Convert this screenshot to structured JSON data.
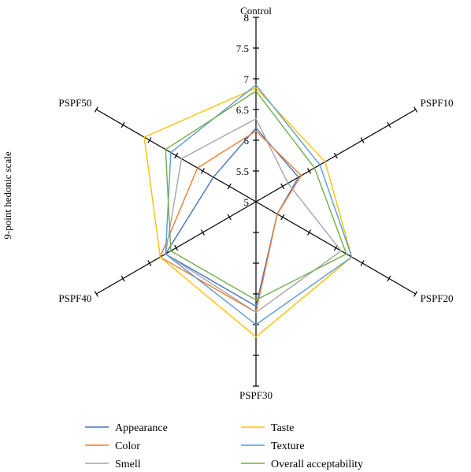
{
  "chart_data": {
    "type": "radar",
    "ylabel": "9-point hedonic scale",
    "axes": [
      "Control",
      "PSPF10",
      "PSPF20",
      "PSPF30",
      "PSPF40",
      "PSPF50"
    ],
    "scale": {
      "min": 5,
      "max": 8,
      "step": 0.5
    },
    "tick_labels": [
      "5",
      "5.5",
      "6",
      "6.5",
      "7",
      "7.5",
      "8"
    ],
    "series": [
      {
        "name": "Appearance",
        "color": "#4472C4",
        "values": [
          6.2,
          5.8,
          5.4,
          6.7,
          6.7,
          5.8
        ]
      },
      {
        "name": "Color",
        "color": "#ED7D31",
        "values": [
          6.15,
          5.85,
          5.4,
          6.8,
          6.8,
          6.1
        ]
      },
      {
        "name": "Smell",
        "color": "#A5A5A5",
        "values": [
          6.35,
          5.6,
          6.6,
          6.8,
          6.7,
          6.4
        ]
      },
      {
        "name": "Taste",
        "color": "#FFC000",
        "values": [
          6.85,
          6.3,
          6.8,
          7.2,
          6.8,
          7.1
        ]
      },
      {
        "name": "Texture",
        "color": "#5B9BD5",
        "values": [
          6.9,
          6.2,
          6.8,
          7.0,
          6.7,
          6.6
        ]
      },
      {
        "name": "Overall acceptability",
        "color": "#70AD47",
        "values": [
          6.8,
          6.1,
          6.7,
          6.6,
          6.6,
          6.7
        ]
      }
    ],
    "legend": {
      "placement": "bottom",
      "columns": 2
    },
    "grid": false
  }
}
